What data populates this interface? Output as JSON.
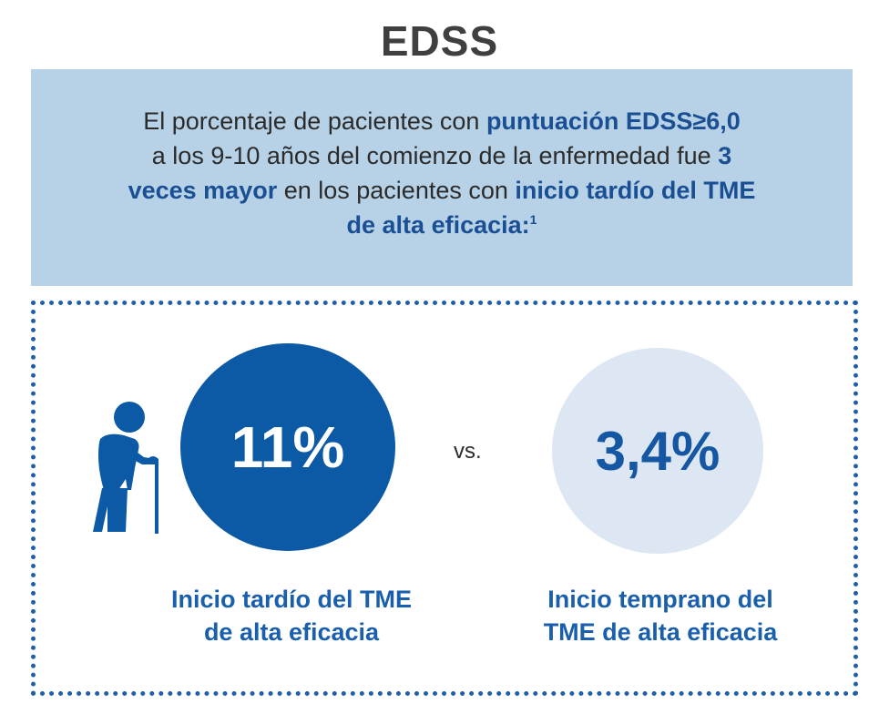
{
  "title": "EDSS",
  "banner": {
    "part1": "El porcentaje de pacientes con ",
    "hl1": "puntuación EDSS≥6,0",
    "part2": "a los 9-10 años del comienzo de la enfermedad fue ",
    "hl2a": "3",
    "hl2b": "veces mayor",
    "part3": " en los pacientes con ",
    "hl3a": "inicio tardío del TME",
    "hl3b": "de alta eficacia",
    "part4": ":",
    "sup": "1"
  },
  "comparison": {
    "left": {
      "value": "11%",
      "label_line1": "Inicio tardío del TME",
      "label_line2": "de alta eficacia",
      "icon": "elderly-person-icon",
      "color": "#0c5aa5"
    },
    "vs": "vs.",
    "right": {
      "value": "3,4%",
      "label_line1": "Inicio temprano del",
      "label_line2": "TME de alta eficacia",
      "color": "#dde7f3"
    }
  },
  "colors": {
    "banner_bg": "#b7d2e7",
    "accent": "#1a4f93",
    "border": "#1f5fa8"
  }
}
